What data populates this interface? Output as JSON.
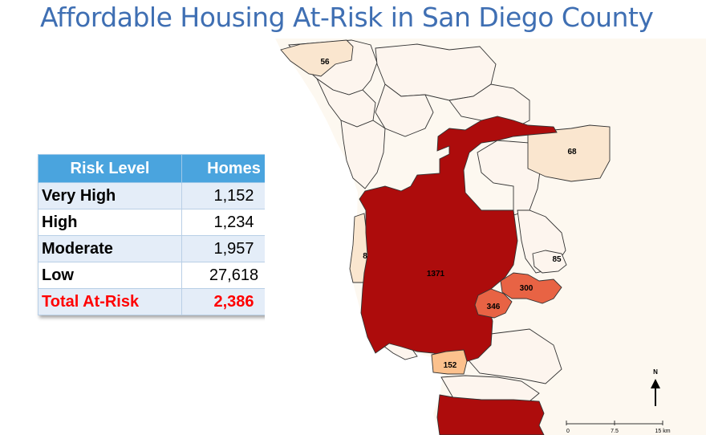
{
  "title": "Affordable Housing At-Risk in San Diego County",
  "table": {
    "headers": [
      "Risk Level",
      "Homes"
    ],
    "rows": [
      {
        "level": "Very High",
        "homes": "1,152"
      },
      {
        "level": "High",
        "homes": "1,234"
      },
      {
        "level": "Moderate",
        "homes": "1,957"
      },
      {
        "level": "Low",
        "homes": "27,618"
      }
    ],
    "total": {
      "level": "Total At-Risk",
      "homes": "2,386"
    }
  },
  "map": {
    "region_labels": {
      "north": "56",
      "east": "68",
      "coastal": "8",
      "central": "1371",
      "la_mesa": "85",
      "lemon_grove": "300",
      "east_central": "346",
      "national_city": "152"
    },
    "colors": {
      "very_high": "#ad0c0c",
      "high": "#e86344",
      "moderate": "#fcc18d",
      "low": "#fae6cf",
      "very_low": "#fdf5ee",
      "background": "#fdf8f0",
      "water": "#ffffff"
    },
    "north_arrow": "N",
    "scale_labels": [
      "0",
      "7.5",
      "15 km"
    ]
  }
}
